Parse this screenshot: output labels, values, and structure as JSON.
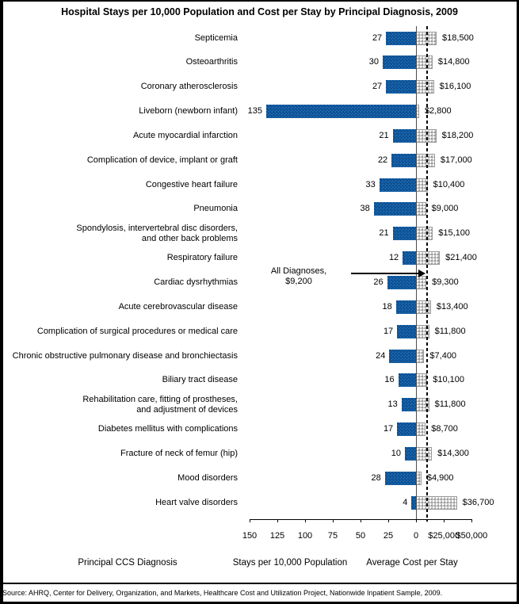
{
  "title": "Hospital Stays per 10,000 Population and Cost per Stay by Principal Diagnosis, 2009",
  "source": "Source: AHRQ, Center for Delivery, Organization, and Markets, Healthcare Cost and Utilization Project, Nationwide Inpatient Sample, 2009.",
  "chart_data": {
    "type": "bar",
    "orientation": "horizontal-bidirectional",
    "title": "Hospital Stays per 10,000 Population and Cost per Stay by Principal Diagnosis, 2009",
    "footers": [
      "Principal CCS Diagnosis",
      "Stays per 10,000 Population",
      "Average Cost per Stay"
    ],
    "left_axis": {
      "label": "Stays per 10,000 Population",
      "range": [
        0,
        150
      ],
      "ticks": [
        150,
        125,
        100,
        75,
        50,
        25,
        0
      ],
      "tick_labels": [
        "150",
        "125",
        "100",
        "75",
        "50",
        "25",
        "0"
      ]
    },
    "right_axis": {
      "label": "Average Cost per Stay",
      "range": [
        0,
        50000
      ],
      "ticks": [
        25000,
        50000
      ],
      "tick_labels": [
        "$25,000",
        "$50,000"
      ]
    },
    "annotation": {
      "line1": "All Diagnoses,",
      "line2": "$9,200",
      "value": 9200
    },
    "colors": {
      "stays_bar": "#2273b9",
      "stays_bar_dot": "#0d4f92",
      "cost_bar": "#c6c6c6",
      "cost_bar_dot": "#9d9d9d",
      "reference_line": "#000000"
    },
    "grid": false,
    "legend": "none",
    "rows": [
      {
        "label": [
          "Septicemia"
        ],
        "stays": 27,
        "stays_label": "27",
        "cost": 18500,
        "cost_label": "$18,500"
      },
      {
        "label": [
          "Osteoarthritis"
        ],
        "stays": 30,
        "stays_label": "30",
        "cost": 14800,
        "cost_label": "$14,800"
      },
      {
        "label": [
          "Coronary atherosclerosis"
        ],
        "stays": 27,
        "stays_label": "27",
        "cost": 16100,
        "cost_label": "$16,100"
      },
      {
        "label": [
          "Liveborn (newborn infant)"
        ],
        "stays": 135,
        "stays_label": "135",
        "cost": 2800,
        "cost_label": "$2,800"
      },
      {
        "label": [
          "Acute myocardial infarction"
        ],
        "stays": 21,
        "stays_label": "21",
        "cost": 18200,
        "cost_label": "$18,200"
      },
      {
        "label": [
          "Complication of device, implant or graft"
        ],
        "stays": 22,
        "stays_label": "22",
        "cost": 17000,
        "cost_label": "$17,000"
      },
      {
        "label": [
          "Congestive heart failure"
        ],
        "stays": 33,
        "stays_label": "33",
        "cost": 10400,
        "cost_label": "$10,400"
      },
      {
        "label": [
          "Pneumonia"
        ],
        "stays": 38,
        "stays_label": "38",
        "cost": 9000,
        "cost_label": "$9,000"
      },
      {
        "label": [
          "Spondylosis, intervertebral disc disorders,",
          "and other back problems"
        ],
        "stays": 21,
        "stays_label": "21",
        "cost": 15100,
        "cost_label": "$15,100"
      },
      {
        "label": [
          "Respiratory failure"
        ],
        "stays": 12,
        "stays_label": "12",
        "cost": 21400,
        "cost_label": "$21,400"
      },
      {
        "label": [
          "Cardiac dysrhythmias"
        ],
        "stays": 26,
        "stays_label": "26",
        "cost": 9300,
        "cost_label": "$9,300"
      },
      {
        "label": [
          "Acute cerebrovascular disease"
        ],
        "stays": 18,
        "stays_label": "18",
        "cost": 13400,
        "cost_label": "$13,400"
      },
      {
        "label": [
          "Complication of surgical procedures or medical care"
        ],
        "stays": 17,
        "stays_label": "17",
        "cost": 11800,
        "cost_label": "$11,800"
      },
      {
        "label": [
          "Chronic obstructive pulmonary disease and bronchiectasis"
        ],
        "stays": 24,
        "stays_label": "24",
        "cost": 7400,
        "cost_label": "$7,400"
      },
      {
        "label": [
          "Biliary tract disease"
        ],
        "stays": 16,
        "stays_label": "16",
        "cost": 10100,
        "cost_label": "$10,100"
      },
      {
        "label": [
          "Rehabilitation care, fitting of prostheses,",
          "and adjustment of devices"
        ],
        "stays": 13,
        "stays_label": "13",
        "cost": 11800,
        "cost_label": "$11,800"
      },
      {
        "label": [
          "Diabetes mellitus with complications"
        ],
        "stays": 17,
        "stays_label": "17",
        "cost": 8700,
        "cost_label": "$8,700"
      },
      {
        "label": [
          "Fracture of neck of femur (hip)"
        ],
        "stays": 10,
        "stays_label": "10",
        "cost": 14300,
        "cost_label": "$14,300"
      },
      {
        "label": [
          "Mood disorders"
        ],
        "stays": 28,
        "stays_label": "28",
        "cost": 4900,
        "cost_label": "$4,900"
      },
      {
        "label": [
          "Heart valve disorders"
        ],
        "stays": 4,
        "stays_label": "4",
        "cost": 36700,
        "cost_label": "$36,700"
      }
    ]
  }
}
